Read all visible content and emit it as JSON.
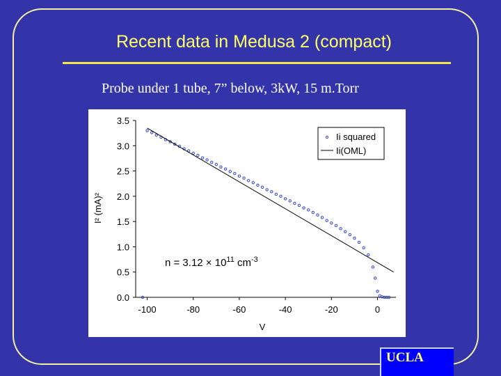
{
  "slide": {
    "title": "Recent data in Medusa 2 (compact)",
    "subtitle": "Probe under 1 tube, 7” below, 3kW, 15 m.Torr",
    "badge": "UCLA",
    "colors": {
      "background": "#3333aa",
      "title": "#ffff66",
      "badge": "#0000ff"
    }
  },
  "chart_data": {
    "type": "scatter",
    "xlabel": "V",
    "ylabel": "I² (mA)²",
    "xlim": [
      -105,
      8
    ],
    "ylim": [
      0,
      3.5
    ],
    "x_ticks": [
      -100,
      -80,
      -60,
      -40,
      -20,
      0
    ],
    "y_ticks": [
      0.0,
      0.5,
      1.0,
      1.5,
      2.0,
      2.5,
      3.0,
      3.5
    ],
    "x_tick_labels": [
      "-100",
      "-80",
      "-60",
      "-40",
      "-20",
      "0"
    ],
    "y_tick_labels": [
      "0.0",
      "0.5",
      "1.0",
      "1.5",
      "2.0",
      "2.5",
      "3.0",
      "3.5"
    ],
    "grid": false,
    "legend": {
      "position": "top-right",
      "entries": [
        "Ii squared",
        "Ii(OML)"
      ]
    },
    "annotation": {
      "prefix": "n = 3.12 × 10",
      "exp1": "11",
      "mid": " cm",
      "exp2": "-3"
    },
    "series": [
      {
        "name": "Ii squared",
        "kind": "points",
        "color": "#3344cc",
        "x": [
          -102,
          -100,
          -98,
          -96,
          -94,
          -92,
          -90,
          -88,
          -86,
          -84,
          -82,
          -80,
          -78,
          -76,
          -74,
          -72,
          -70,
          -68,
          -66,
          -64,
          -62,
          -60,
          -58,
          -56,
          -54,
          -52,
          -50,
          -48,
          -46,
          -44,
          -42,
          -40,
          -38,
          -36,
          -34,
          -32,
          -30,
          -28,
          -26,
          -24,
          -22,
          -20,
          -18,
          -16,
          -14,
          -12,
          -10,
          -8,
          -6,
          -4,
          -2,
          -1,
          0,
          1,
          2,
          3,
          4,
          5
        ],
        "y": [
          0.0,
          3.3,
          3.26,
          3.21,
          3.17,
          3.12,
          3.08,
          3.03,
          2.99,
          2.94,
          2.9,
          2.85,
          2.81,
          2.76,
          2.72,
          2.67,
          2.63,
          2.58,
          2.54,
          2.49,
          2.45,
          2.4,
          2.36,
          2.31,
          2.27,
          2.22,
          2.18,
          2.13,
          2.09,
          2.04,
          2.0,
          1.95,
          1.91,
          1.86,
          1.82,
          1.77,
          1.73,
          1.68,
          1.63,
          1.58,
          1.52,
          1.47,
          1.42,
          1.36,
          1.3,
          1.24,
          1.17,
          1.09,
          0.98,
          0.84,
          0.6,
          0.38,
          0.12,
          0.03,
          0.01,
          0.0,
          0.0,
          0.0
        ]
      },
      {
        "name": "Ii(OML)",
        "kind": "line",
        "color": "#000000",
        "x": [
          -100,
          7
        ],
        "y": [
          3.35,
          0.5
        ]
      }
    ]
  }
}
